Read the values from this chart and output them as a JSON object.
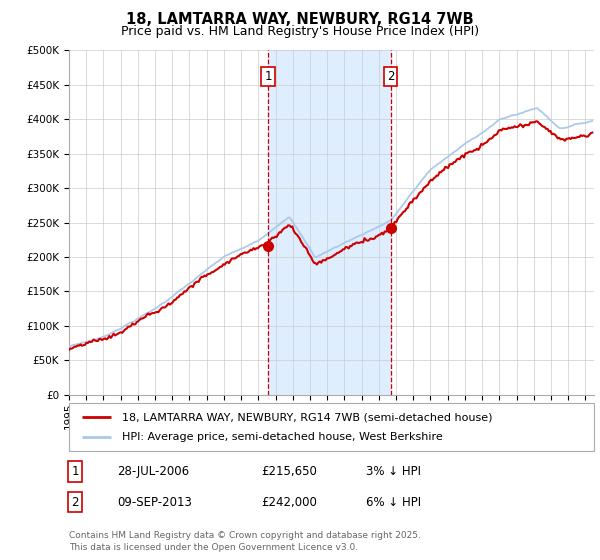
{
  "title_line1": "18, LAMTARRA WAY, NEWBURY, RG14 7WB",
  "title_line2": "Price paid vs. HM Land Registry's House Price Index (HPI)",
  "ylabel_ticks": [
    "£0",
    "£50K",
    "£100K",
    "£150K",
    "£200K",
    "£250K",
    "£300K",
    "£350K",
    "£400K",
    "£450K",
    "£500K"
  ],
  "ytick_values": [
    0,
    50000,
    100000,
    150000,
    200000,
    250000,
    300000,
    350000,
    400000,
    450000,
    500000
  ],
  "ylim": [
    0,
    500000
  ],
  "xlim_start": 1995.0,
  "xlim_end": 2025.5,
  "purchase1_x": 2006.57,
  "purchase1_y": 215650,
  "purchase1_label": "1",
  "purchase2_x": 2013.69,
  "purchase2_y": 242000,
  "purchase2_label": "2",
  "shade_start": 2006.57,
  "shade_end": 2013.69,
  "hpi_color": "#a8c8e8",
  "price_color": "#cc0000",
  "shade_color": "#deeeff",
  "marker_color": "#cc0000",
  "grid_color": "#cccccc",
  "bg_color": "#ffffff",
  "legend_line1": "18, LAMTARRA WAY, NEWBURY, RG14 7WB (semi-detached house)",
  "legend_line2": "HPI: Average price, semi-detached house, West Berkshire",
  "table_row1": [
    "1",
    "28-JUL-2006",
    "£215,650",
    "3% ↓ HPI"
  ],
  "table_row2": [
    "2",
    "09-SEP-2013",
    "£242,000",
    "6% ↓ HPI"
  ],
  "footnote": "Contains HM Land Registry data © Crown copyright and database right 2025.\nThis data is licensed under the Open Government Licence v3.0.",
  "title_fontsize": 10.5,
  "subtitle_fontsize": 9,
  "tick_fontsize": 7.5,
  "legend_fontsize": 8,
  "table_fontsize": 8.5,
  "footnote_fontsize": 6.5
}
